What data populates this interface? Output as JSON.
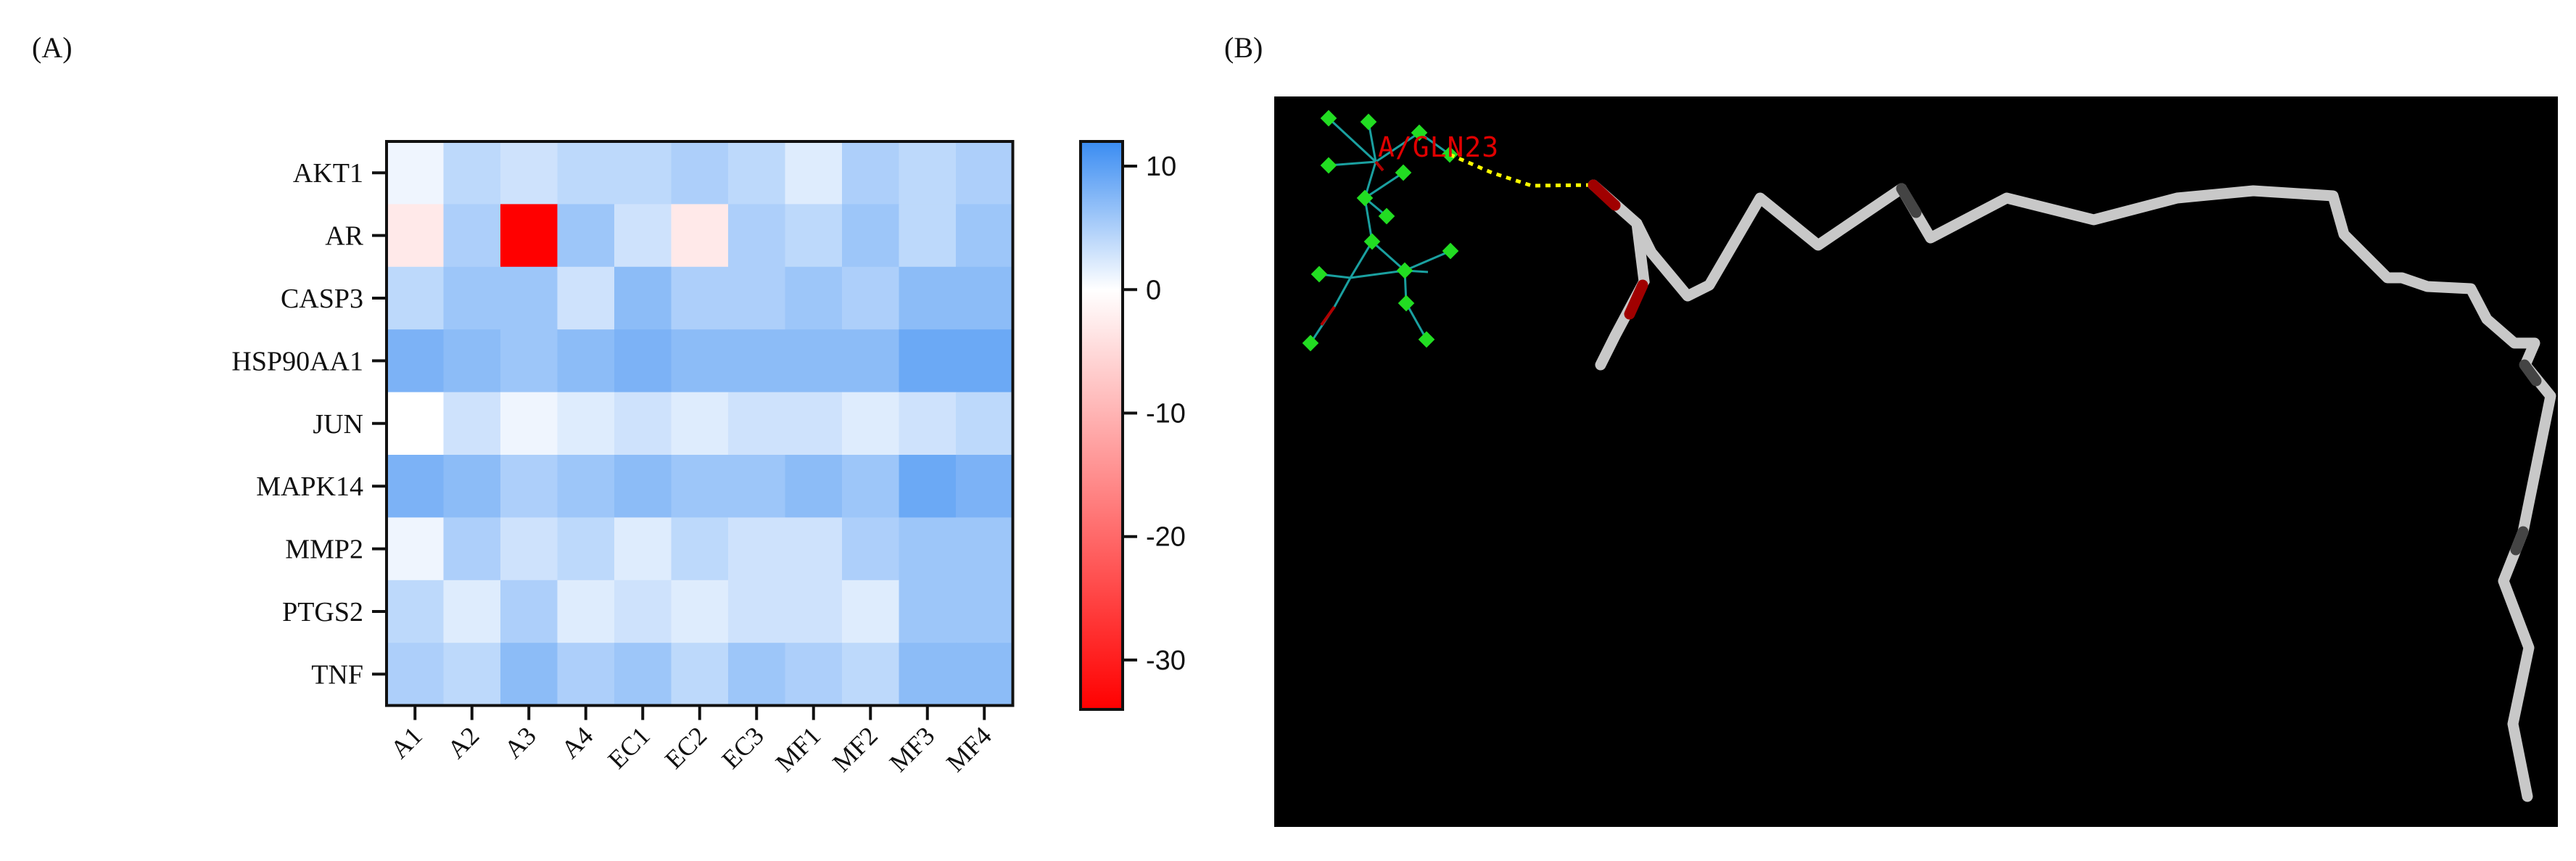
{
  "panels": {
    "a_label": "(A)",
    "b_label": "(B)"
  },
  "chart_data": {
    "type": "heatmap",
    "title": "",
    "xlabel": "",
    "ylabel": "",
    "rows": [
      "AKT1",
      "AR",
      "CASP3",
      "HSP90AA1",
      "JUN",
      "MAPK14",
      "MMP2",
      "PTGS2",
      "TNF"
    ],
    "columns": [
      "A1",
      "A2",
      "A3",
      "A4",
      "EC1",
      "EC2",
      "EC3",
      "MF1",
      "MF2",
      "MF3",
      "MF4"
    ],
    "values": [
      [
        1,
        4,
        3,
        4,
        4,
        5,
        4,
        2,
        5,
        4,
        5
      ],
      [
        -3,
        5,
        -34,
        6,
        3,
        -3,
        5,
        4,
        6,
        4,
        6
      ],
      [
        4,
        6,
        6,
        3,
        7,
        5,
        5,
        6,
        5,
        7,
        7
      ],
      [
        8,
        7,
        6,
        7,
        8,
        7,
        7,
        7,
        7,
        9,
        9
      ],
      [
        0,
        3,
        1,
        2,
        3,
        2,
        3,
        3,
        2,
        3,
        4
      ],
      [
        8,
        7,
        5,
        6,
        7,
        6,
        6,
        7,
        6,
        9,
        8
      ],
      [
        1,
        5,
        3,
        4,
        2,
        4,
        3,
        3,
        5,
        6,
        6
      ],
      [
        4,
        2,
        5,
        2,
        3,
        2,
        3,
        3,
        2,
        6,
        6
      ],
      [
        5,
        4,
        7,
        5,
        6,
        4,
        6,
        5,
        4,
        7,
        7
      ]
    ],
    "colorbar": {
      "min": -34,
      "max": 12,
      "ticks": [
        10,
        0,
        -10,
        -20,
        -30
      ],
      "low_color": "#ff0000",
      "mid_color": "#ffffff",
      "high_color": "#3a8cf2"
    }
  },
  "molecule": {
    "residue_label": "A/GLN23",
    "background": "#000000",
    "ligand_color": "#c8c8c8",
    "hbond_color": "#ffff00",
    "oxygen_color": "#a00000",
    "atom_color": "#22dd22"
  }
}
